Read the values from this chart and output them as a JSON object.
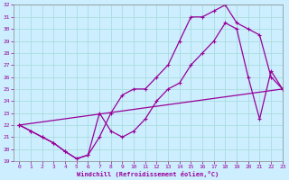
{
  "line1_x": [
    0,
    1,
    2,
    3,
    4,
    5,
    6,
    7,
    8,
    9,
    10,
    11,
    12,
    13,
    14,
    15,
    16,
    17,
    18,
    19,
    20,
    21,
    22,
    23
  ],
  "line1_y": [
    22.0,
    21.5,
    21.0,
    20.5,
    19.8,
    19.2,
    19.5,
    21.0,
    23.0,
    24.5,
    25.0,
    25.0,
    26.0,
    27.0,
    29.0,
    31.0,
    31.0,
    31.5,
    32.0,
    30.5,
    30.0,
    29.5,
    26.0,
    25.0
  ],
  "line2_x": [
    0,
    1,
    2,
    3,
    4,
    5,
    6,
    7,
    8,
    9,
    10,
    11,
    12,
    13,
    14,
    15,
    16,
    17,
    18,
    19,
    20,
    21,
    22,
    23
  ],
  "line2_y": [
    22.0,
    21.5,
    21.0,
    20.5,
    19.8,
    19.2,
    19.5,
    23.0,
    21.5,
    21.0,
    21.5,
    22.5,
    24.0,
    25.0,
    25.5,
    27.0,
    28.0,
    29.0,
    30.5,
    30.0,
    26.0,
    22.5,
    26.5,
    25.0
  ],
  "line3_x": [
    0,
    23
  ],
  "line3_y": [
    22.0,
    25.0
  ],
  "bg_color": "#cceeff",
  "line_color": "#990099",
  "grid_color": "#aadddd",
  "xlim": [
    -0.5,
    23
  ],
  "ylim": [
    19,
    32
  ],
  "xlabel": "Windchill (Refroidissement éolien,°C)",
  "yticks": [
    19,
    20,
    21,
    22,
    23,
    24,
    25,
    26,
    27,
    28,
    29,
    30,
    31,
    32
  ],
  "xticks": [
    0,
    1,
    2,
    3,
    4,
    5,
    6,
    7,
    8,
    9,
    10,
    11,
    12,
    13,
    14,
    15,
    16,
    17,
    18,
    19,
    20,
    21,
    22,
    23
  ]
}
